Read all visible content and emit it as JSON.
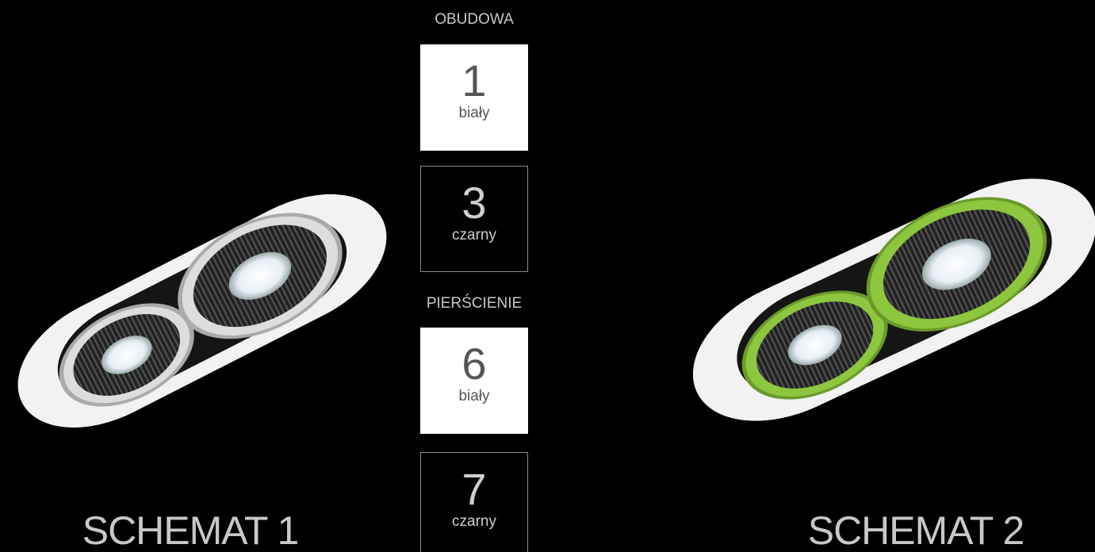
{
  "housing": {
    "title": "OBUDOWA",
    "options": [
      {
        "number": "1",
        "label": "biały"
      },
      {
        "number": "3",
        "label": "czarny"
      }
    ]
  },
  "rings": {
    "title": "PIERŚCIENIE",
    "options": [
      {
        "number": "6",
        "label": "biały"
      },
      {
        "number": "7",
        "label": "czarny"
      }
    ]
  },
  "schemes": [
    "SCHEMAT 1",
    "SCHEMAT 2"
  ]
}
